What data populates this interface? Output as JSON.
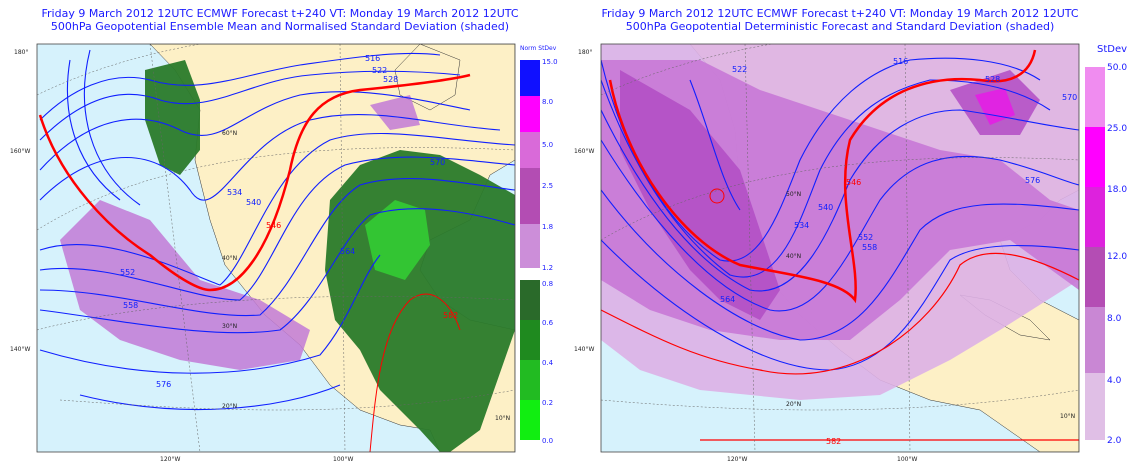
{
  "left": {
    "title1": "Friday 9 March 2012 12UTC ECMWF Forecast t+240  VT: Monday 19 March 2012 12UTC",
    "title2": "500hPa Geopotential Ensemble Mean and Normalised Standard Deviation (shaded)",
    "legend_title": "Norm StDev",
    "legend_ticks": [
      "15.0",
      "8.0",
      "5.0",
      "2.5",
      "1.8",
      "1.2",
      "0.8",
      "0.6",
      "0.4",
      "0.2",
      "0.0"
    ],
    "contours": [
      "516",
      "522",
      "528",
      "534",
      "540",
      "546",
      "552",
      "558",
      "564",
      "570",
      "576",
      "582"
    ],
    "lat_labels": [
      "60°N",
      "40°N",
      "30°N",
      "20°N",
      "10°N"
    ],
    "lon_labels": [
      "180°",
      "160°W",
      "140°W",
      "120°W",
      "100°W"
    ],
    "colors": {
      "ocean": "#d6f2fc",
      "land": "#fdf0c6",
      "blue": "#0000ff",
      "red": "#ff0000",
      "green": "#2a8a2a",
      "purple": "#c27ad6"
    }
  },
  "right": {
    "title1": "Friday 9 March 2012 12UTC ECMWF Forecast t+240  VT: Monday 19 March 2012 12UTC",
    "title2": "500hPa Geopotential Deterministic Forecast and Standard Deviation (shaded)",
    "legend_title": "StDev",
    "legend_ticks": [
      "50.0",
      "25.0",
      "18.0",
      "12.0",
      "8.0",
      "4.0",
      "2.0"
    ],
    "contours": [
      "516",
      "522",
      "528",
      "534",
      "540",
      "546",
      "552",
      "558",
      "564",
      "570",
      "576",
      "582"
    ],
    "lat_labels": [
      "50°N",
      "40°N",
      "20°N",
      "10°N"
    ],
    "lon_labels": [
      "180°",
      "160°W",
      "140°W",
      "120°W",
      "100°W"
    ],
    "colors": {
      "ocean": "#d6f2fc",
      "land": "#fdf0c6",
      "blue": "#0000ff",
      "red": "#ff0000",
      "purple": "#b85cc8"
    }
  }
}
